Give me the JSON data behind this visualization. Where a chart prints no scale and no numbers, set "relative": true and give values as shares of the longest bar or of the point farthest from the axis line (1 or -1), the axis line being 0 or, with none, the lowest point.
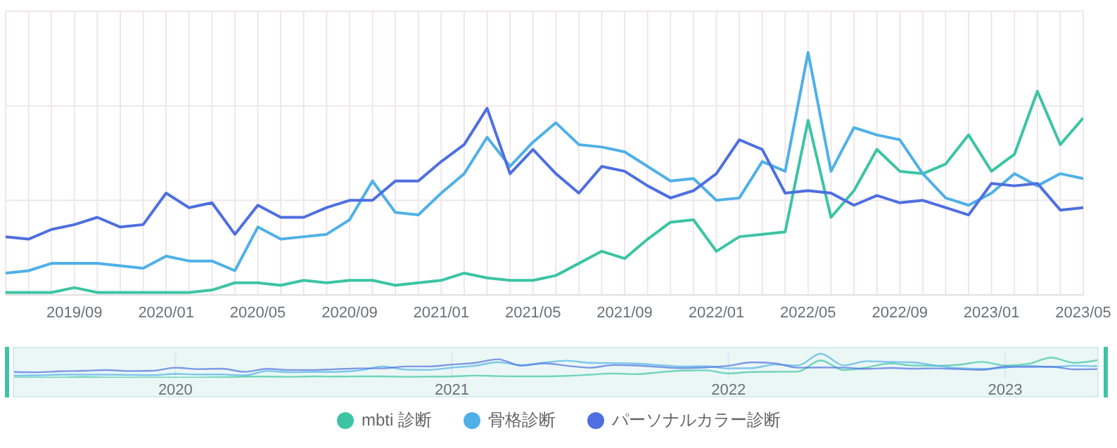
{
  "chart_data": [
    {
      "type": "line",
      "relative": true,
      "grid": true,
      "legend": "bottom",
      "categories": [
        null,
        null,
        null,
        "2019/09",
        null,
        null,
        null,
        "2020/01",
        null,
        null,
        null,
        "2020/05",
        null,
        null,
        null,
        "2020/09",
        null,
        null,
        null,
        "2021/01",
        null,
        null,
        null,
        "2021/05",
        null,
        null,
        null,
        "2021/09",
        null,
        null,
        null,
        "2022/01",
        null,
        null,
        null,
        "2022/05",
        null,
        null,
        null,
        "2022/09",
        null,
        null,
        null,
        "2023/01",
        null,
        null,
        null,
        "2023/05"
      ],
      "series": [
        {
          "name": "mbti 診断",
          "color": "#3cc4a4",
          "values": [
            0.01,
            0.01,
            0.01,
            0.03,
            0.01,
            0.01,
            0.01,
            0.01,
            0.01,
            0.02,
            0.05,
            0.05,
            0.04,
            0.06,
            0.05,
            0.06,
            0.06,
            0.04,
            0.05,
            0.06,
            0.09,
            0.07,
            0.06,
            0.06,
            0.08,
            0.13,
            0.18,
            0.15,
            0.23,
            0.3,
            0.31,
            0.18,
            0.24,
            0.25,
            0.26,
            0.72,
            0.32,
            0.43,
            0.6,
            0.51,
            0.5,
            0.54,
            0.66,
            0.51,
            0.58,
            0.84,
            0.62,
            0.73
          ]
        },
        {
          "name": "骨格診断",
          "color": "#4fb0e8",
          "values": [
            0.09,
            0.1,
            0.13,
            0.13,
            0.13,
            0.12,
            0.11,
            0.16,
            0.14,
            0.14,
            0.1,
            0.28,
            0.23,
            0.24,
            0.25,
            0.31,
            0.47,
            0.34,
            0.33,
            0.42,
            0.5,
            0.65,
            0.53,
            0.63,
            0.71,
            0.62,
            0.61,
            0.59,
            0.53,
            0.47,
            0.48,
            0.39,
            0.4,
            0.55,
            0.51,
            1,
            0.51,
            0.69,
            0.66,
            0.64,
            0.5,
            0.4,
            0.37,
            0.42,
            0.5,
            0.45,
            0.5,
            0.48
          ]
        },
        {
          "name": "パーソナルカラー診断",
          "color": "#4e6fe0",
          "values": [
            0.24,
            0.23,
            0.27,
            0.29,
            0.32,
            0.28,
            0.29,
            0.42,
            0.36,
            0.38,
            0.25,
            0.37,
            0.32,
            0.32,
            0.36,
            0.39,
            0.39,
            0.47,
            0.47,
            0.55,
            0.62,
            0.77,
            0.5,
            0.6,
            0.5,
            0.42,
            0.53,
            0.51,
            0.45,
            0.4,
            0.43,
            0.5,
            0.64,
            0.6,
            0.42,
            0.43,
            0.42,
            0.37,
            0.41,
            0.38,
            0.39,
            0.36,
            0.33,
            0.46,
            0.45,
            0.46,
            0.35,
            0.36
          ]
        }
      ]
    },
    {
      "type": "line",
      "relative": true,
      "grid": "x",
      "categories": [
        null,
        null,
        null,
        null,
        null,
        null,
        null,
        "2020",
        null,
        null,
        null,
        null,
        null,
        null,
        null,
        null,
        null,
        null,
        null,
        "2021",
        null,
        null,
        null,
        null,
        null,
        null,
        null,
        null,
        null,
        null,
        null,
        "2022",
        null,
        null,
        null,
        null,
        null,
        null,
        null,
        null,
        null,
        null,
        null,
        "2023",
        null,
        null,
        null,
        null
      ],
      "series": [
        {
          "color": "#3cc4a4",
          "values": [
            0.01,
            0.01,
            0.01,
            0.03,
            0.01,
            0.01,
            0.01,
            0.01,
            0.01,
            0.02,
            0.05,
            0.05,
            0.04,
            0.06,
            0.05,
            0.06,
            0.06,
            0.04,
            0.05,
            0.06,
            0.09,
            0.07,
            0.06,
            0.06,
            0.08,
            0.13,
            0.18,
            0.15,
            0.23,
            0.3,
            0.31,
            0.18,
            0.24,
            0.25,
            0.26,
            0.72,
            0.32,
            0.43,
            0.6,
            0.51,
            0.5,
            0.54,
            0.66,
            0.51,
            0.58,
            0.84,
            0.62,
            0.73
          ]
        },
        {
          "color": "#4fb0e8",
          "values": [
            0.09,
            0.1,
            0.13,
            0.13,
            0.13,
            0.12,
            0.11,
            0.16,
            0.14,
            0.14,
            0.1,
            0.28,
            0.23,
            0.24,
            0.25,
            0.31,
            0.47,
            0.34,
            0.33,
            0.42,
            0.5,
            0.65,
            0.53,
            0.63,
            0.71,
            0.62,
            0.61,
            0.59,
            0.53,
            0.47,
            0.48,
            0.39,
            0.4,
            0.55,
            0.51,
            1,
            0.51,
            0.69,
            0.66,
            0.64,
            0.5,
            0.4,
            0.37,
            0.42,
            0.5,
            0.45,
            0.5,
            0.48
          ]
        },
        {
          "color": "#4e6fe0",
          "values": [
            0.24,
            0.23,
            0.27,
            0.29,
            0.32,
            0.28,
            0.29,
            0.42,
            0.36,
            0.38,
            0.25,
            0.37,
            0.32,
            0.32,
            0.36,
            0.39,
            0.39,
            0.47,
            0.47,
            0.55,
            0.62,
            0.77,
            0.5,
            0.6,
            0.5,
            0.42,
            0.53,
            0.51,
            0.45,
            0.4,
            0.43,
            0.5,
            0.64,
            0.6,
            0.42,
            0.43,
            0.42,
            0.37,
            0.41,
            0.38,
            0.39,
            0.36,
            0.33,
            0.46,
            0.45,
            0.46,
            0.35,
            0.36
          ]
        }
      ]
    }
  ]
}
